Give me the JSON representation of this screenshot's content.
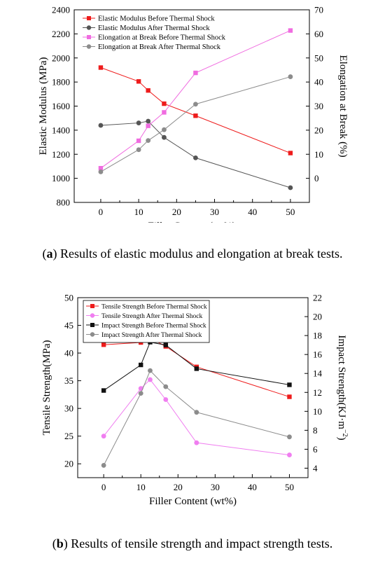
{
  "captions": {
    "a_letter": "a",
    "a_text": " Results of elastic modulus and elongation at break tests.",
    "b_letter": "b",
    "b_text": " Results of tensile strength and impact strength tests."
  },
  "chart_data": [
    {
      "type": "line",
      "xlabel": "Filler Content (wt%)",
      "xlim": [
        -7,
        55
      ],
      "xticks": [
        0,
        10,
        20,
        30,
        40,
        50
      ],
      "ylabel_left": "Elastic Modulus (MPa)",
      "ylim_left": [
        800,
        2400
      ],
      "yticks_left": [
        800,
        1000,
        1200,
        1400,
        1600,
        1800,
        2000,
        2200,
        2400
      ],
      "ylabel_right": "Elongation at Break (%)",
      "ylim_right": [
        -10,
        70
      ],
      "yticks_right": [
        0,
        10,
        20,
        30,
        40,
        50,
        60,
        70
      ],
      "legend_position": "top-left",
      "series": [
        {
          "name": "Elastic Modulus Before Thermal Shock",
          "axis": "left",
          "color": "#ee1c1c",
          "marker": "square",
          "x": [
            0,
            10,
            12.5,
            16.7,
            25,
            50
          ],
          "y": [
            1920,
            1805,
            1730,
            1620,
            1520,
            1210
          ]
        },
        {
          "name": "Elastic Modulus After Thermal Shock",
          "axis": "left",
          "color": "#555555",
          "marker": "circle",
          "x": [
            0,
            10,
            12.5,
            16.7,
            25,
            50
          ],
          "y": [
            1440,
            1460,
            1475,
            1340,
            1170,
            922
          ]
        },
        {
          "name": "Elongation at Break Before Thermal Shock",
          "axis": "right",
          "color": "#f06ce0",
          "marker": "square",
          "x": [
            0,
            10,
            12.5,
            16.7,
            25,
            50
          ],
          "y": [
            4.2,
            15.6,
            21.8,
            27.4,
            43.8,
            61.4
          ]
        },
        {
          "name": "Elongation at Break After Thermal Shock",
          "axis": "right",
          "color": "#8c8c8c",
          "marker": "circle",
          "x": [
            0,
            10,
            12.5,
            16.7,
            25,
            50
          ],
          "y": [
            2.7,
            11.9,
            15.7,
            20.2,
            30.8,
            42.2
          ]
        }
      ]
    },
    {
      "type": "line",
      "xlabel": "Filler Content (wt%)",
      "xlim": [
        -7,
        55
      ],
      "xticks": [
        0,
        10,
        20,
        30,
        40,
        50
      ],
      "ylabel_left": "Tensile Strength(MPa)",
      "ylim_left": [
        17.5,
        50
      ],
      "yticks_left": [
        20,
        25,
        30,
        35,
        40,
        45,
        50
      ],
      "ylabel_right": "Impact Strength(KJ·m",
      "ylabel_right_exp": "−2",
      "ylabel_right_close": ")",
      "ylim_right": [
        3,
        22
      ],
      "yticks_right": [
        4,
        6,
        8,
        10,
        12,
        14,
        16,
        18,
        20,
        22
      ],
      "legend_position": "top-left",
      "series": [
        {
          "name": "Tensile Strength Before Thermal Shock",
          "axis": "left",
          "color": "#ee1c1c",
          "marker": "square",
          "x": [
            0,
            10,
            12.5,
            16.7,
            25,
            50
          ],
          "y": [
            41.5,
            41.9,
            42.7,
            41.2,
            37.5,
            32.1
          ]
        },
        {
          "name": "Tensile Strength After Thermal Shock",
          "axis": "left",
          "color": "#f07ef0",
          "marker": "circle",
          "x": [
            0,
            10,
            12.5,
            16.7,
            25,
            50
          ],
          "y": [
            25.0,
            33.6,
            35.2,
            31.6,
            23.8,
            21.6
          ]
        },
        {
          "name": "Impact Strength Before Thermal Shock",
          "axis": "right",
          "color": "#111111",
          "marker": "square",
          "x": [
            0,
            10,
            12.5,
            16.7,
            25,
            50
          ],
          "y": [
            12.2,
            14.9,
            17.3,
            17.0,
            14.5,
            12.8
          ]
        },
        {
          "name": "Impact Strength After Thermal Shock",
          "axis": "right",
          "color": "#8c8c8c",
          "marker": "circle",
          "x": [
            0,
            10,
            12.5,
            16.7,
            25,
            50
          ],
          "y": [
            4.3,
            11.9,
            14.3,
            12.6,
            9.9,
            7.3
          ]
        }
      ]
    }
  ]
}
